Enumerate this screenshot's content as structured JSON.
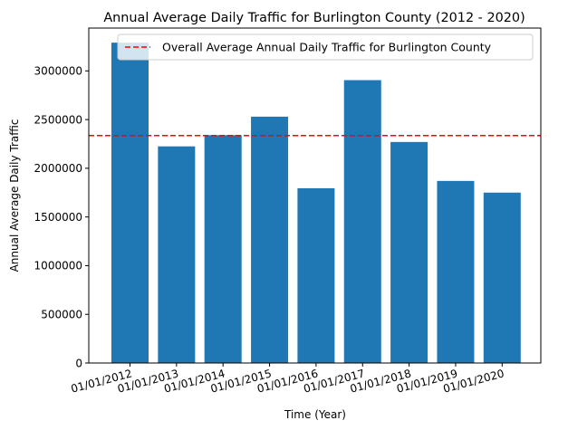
{
  "chart_data": {
    "type": "bar",
    "title": "Annual Average Daily Traffic for Burlington County (2012 - 2020)",
    "xlabel": "Time (Year)",
    "ylabel": "Annual Average Daily Traffic",
    "categories": [
      "01/01/2012",
      "01/01/2013",
      "01/01/2014",
      "01/01/2015",
      "01/01/2016",
      "01/01/2017",
      "01/01/2018",
      "01/01/2019",
      "01/01/2020"
    ],
    "values": [
      3290000,
      2225000,
      2340000,
      2530000,
      1795000,
      2905000,
      2270000,
      1870000,
      1750000
    ],
    "ylim": [
      0,
      3440000
    ],
    "yticks": [
      0,
      500000,
      1000000,
      1500000,
      2000000,
      2500000,
      3000000
    ],
    "ytick_labels": [
      "0",
      "500000",
      "1000000",
      "1500000",
      "2000000",
      "2500000",
      "3000000"
    ],
    "reference_line": {
      "label": "Overall Average Annual Daily Traffic for Burlington County",
      "value": 2336000,
      "color": "#ff0000",
      "style": "dashed"
    },
    "bar_color": "#1f77b4",
    "grid": false,
    "legend_position": "upper right"
  }
}
